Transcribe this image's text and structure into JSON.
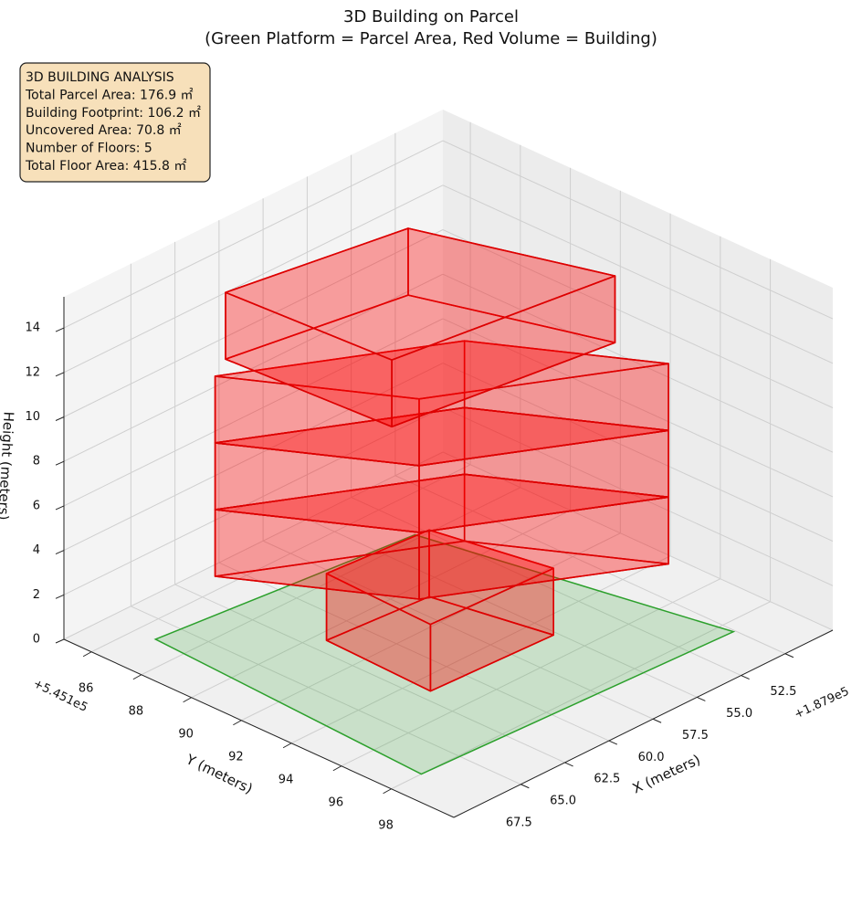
{
  "chart_data": {
    "type": "3d-building",
    "title": "3D Building on Parcel",
    "subtitle": "(Green Platform = Parcel Area, Red Volume = Building)",
    "x_label": "X (meters)",
    "y_label": "Y (meters)",
    "z_label": "Height (meters)",
    "x_offset": "+1.879e5",
    "y_offset": "+5.451e5",
    "xlim": [
      49.8,
      71.3
    ],
    "ylim": [
      84.9,
      100.5
    ],
    "zlim": [
      0,
      15.4
    ],
    "xticks": [
      52.5,
      {
        "value": 55,
        "label": "55.0"
      },
      57.5,
      {
        "value": 60,
        "label": "60.0"
      },
      62.5,
      {
        "value": 65,
        "label": "65.0"
      },
      67.5
    ],
    "yticks": [
      86,
      88,
      90,
      92,
      94,
      96,
      98
    ],
    "zticks": [
      0,
      2,
      4,
      6,
      8,
      10,
      12,
      14
    ],
    "grid": true,
    "parcel_color": "#2ca02c",
    "building_color": "#dd0000",
    "parcel": [
      [
        68.8,
        86.8
      ],
      [
        55.5,
        87.8
      ],
      [
        52.6,
        98.5
      ],
      [
        69.6,
        98.0
      ]
    ],
    "floors": [
      {
        "footprint": [
          [
            64.2,
            90.4
          ],
          [
            64.4,
            94.7
          ],
          [
            57.7,
            94.9
          ],
          [
            58.8,
            90.7
          ]
        ],
        "z": [
          0,
          3
        ]
      },
      {
        "footprint": [
          [
            67.4,
            88.2
          ],
          [
            63.2,
            93.4
          ],
          [
            54.3,
            97.1
          ],
          [
            58.5,
            91.9
          ]
        ],
        "z": [
          3,
          6
        ]
      },
      {
        "footprint": [
          [
            67.4,
            88.2
          ],
          [
            63.2,
            93.4
          ],
          [
            54.3,
            97.1
          ],
          [
            58.5,
            91.9
          ]
        ],
        "z": [
          6,
          9
        ]
      },
      {
        "footprint": [
          [
            67.4,
            88.2
          ],
          [
            63.2,
            93.4
          ],
          [
            54.3,
            97.1
          ],
          [
            58.5,
            91.9
          ]
        ],
        "z": [
          9,
          12
        ]
      },
      {
        "footprint": [
          [
            66.1,
            87.7
          ],
          [
            57.3,
            88.8
          ],
          [
            54.5,
            95.1
          ],
          [
            65.6,
            94.0
          ]
        ],
        "z": [
          12,
          15
        ]
      }
    ],
    "annotations": [
      "3D BUILDING ANALYSIS",
      "Total Parcel Area: 176.9 ㎡",
      "Building Footprint: 106.2 ㎡",
      "Uncovered Area: 70.8 ㎡",
      "Number of Floors: 5",
      "Total Floor Area: 415.8 ㎡"
    ]
  }
}
